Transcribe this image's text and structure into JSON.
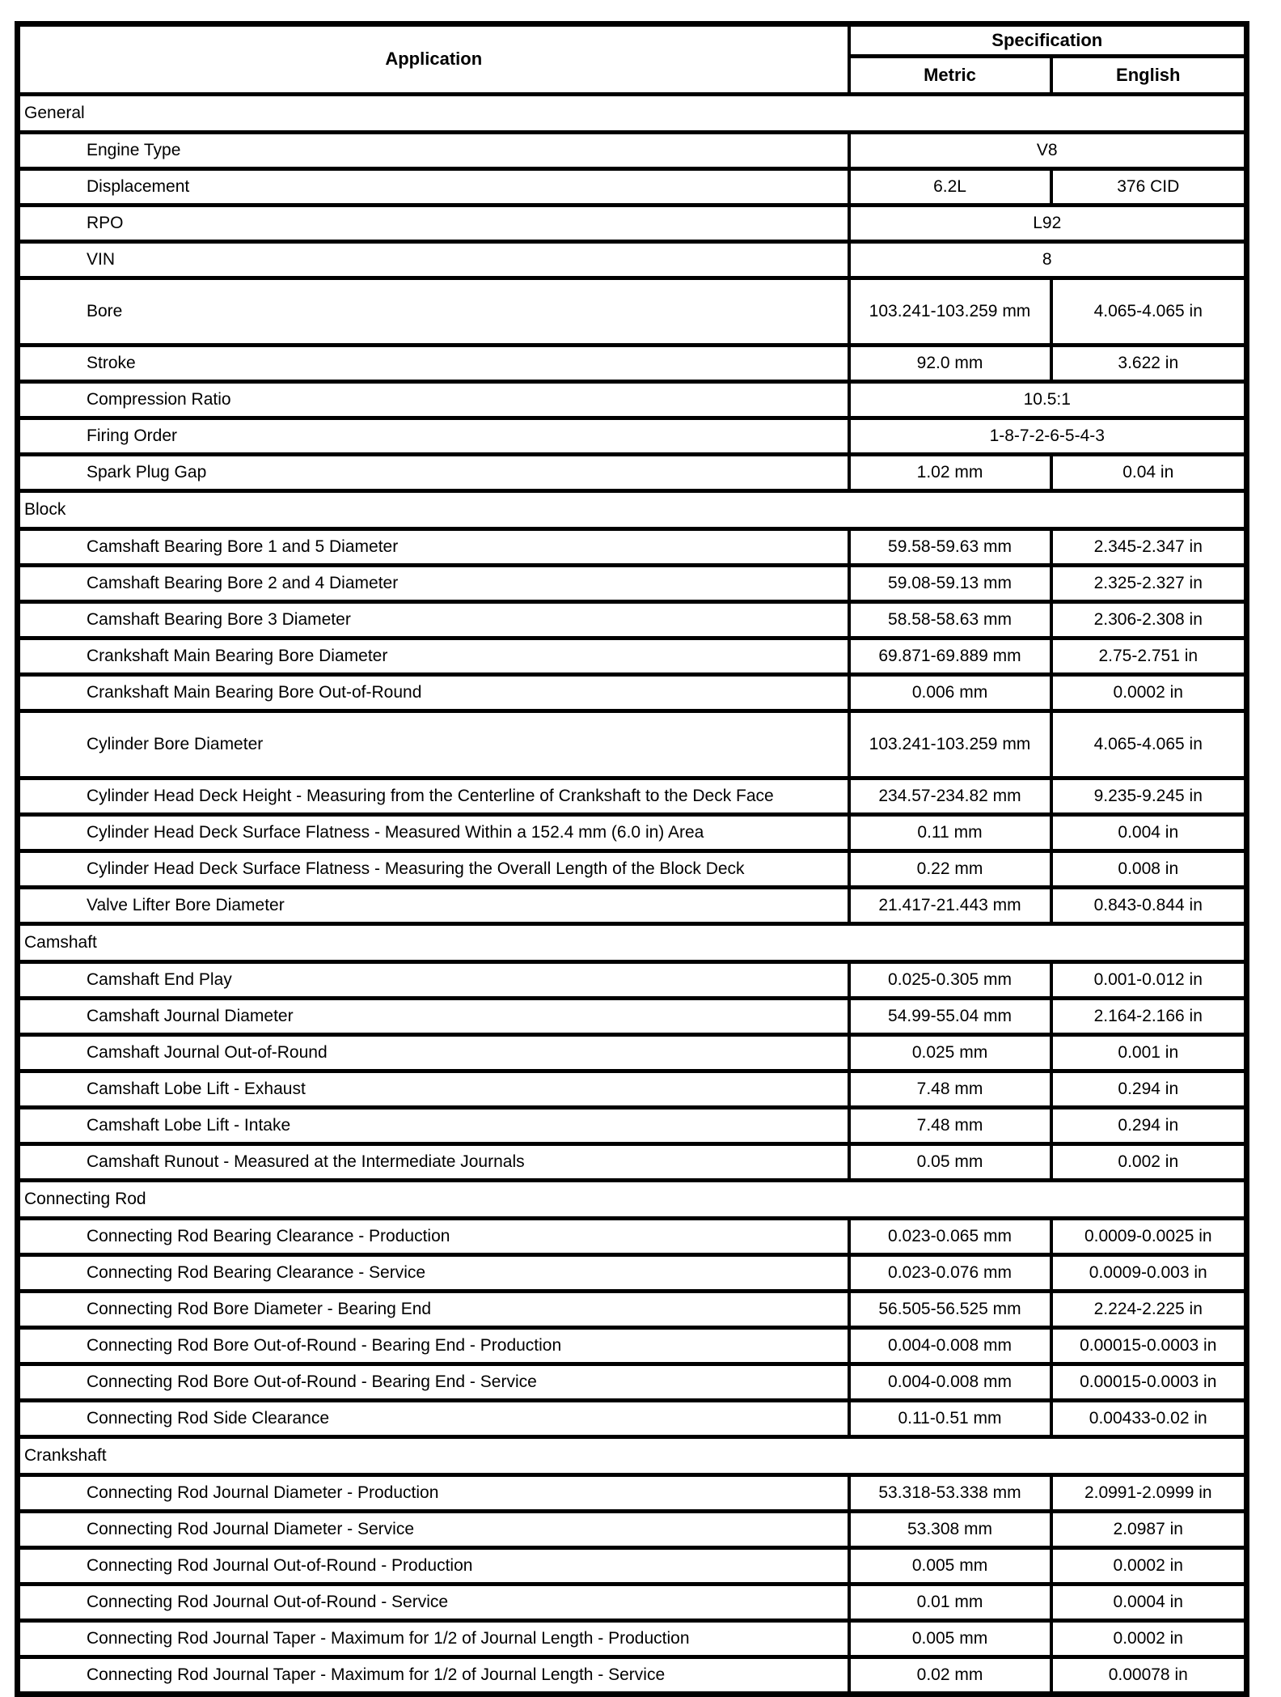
{
  "header": {
    "application": "Application",
    "specification": "Specification",
    "metric": "Metric",
    "english": "English"
  },
  "colors": {
    "border": "#000000",
    "background": "#ffffff",
    "text": "#000000"
  },
  "sections": [
    {
      "title": "General",
      "rows": [
        {
          "application": "Engine Type",
          "value": "V8"
        },
        {
          "application": "Displacement",
          "metric": "6.2L",
          "english": "376 CID"
        },
        {
          "application": "RPO",
          "value": "L92"
        },
        {
          "application": "VIN",
          "value": "8"
        },
        {
          "application": "Bore",
          "metric": "103.241-103.259 mm",
          "english": "4.065-4.065 in"
        },
        {
          "application": "Stroke",
          "metric": "92.0 mm",
          "english": "3.622 in"
        },
        {
          "application": "Compression Ratio",
          "value": "10.5:1"
        },
        {
          "application": "Firing Order",
          "value": "1-8-7-2-6-5-4-3"
        },
        {
          "application": "Spark Plug Gap",
          "metric": "1.02 mm",
          "english": "0.04 in"
        }
      ]
    },
    {
      "title": "Block",
      "rows": [
        {
          "application": "Camshaft Bearing Bore 1 and 5 Diameter",
          "metric": "59.58-59.63 mm",
          "english": "2.345-2.347 in"
        },
        {
          "application": "Camshaft Bearing Bore 2 and 4 Diameter",
          "metric": "59.08-59.13 mm",
          "english": "2.325-2.327 in"
        },
        {
          "application": "Camshaft Bearing Bore 3 Diameter",
          "metric": "58.58-58.63 mm",
          "english": "2.306-2.308 in"
        },
        {
          "application": "Crankshaft Main Bearing Bore Diameter",
          "metric": "69.871-69.889 mm",
          "english": "2.75-2.751 in"
        },
        {
          "application": "Crankshaft Main Bearing Bore Out-of-Round",
          "metric": "0.006 mm",
          "english": "0.0002 in"
        },
        {
          "application": "Cylinder Bore Diameter",
          "metric": "103.241-103.259 mm",
          "english": "4.065-4.065 in"
        },
        {
          "application": "Cylinder Head Deck Height - Measuring from the Centerline of Crankshaft to the Deck Face",
          "metric": "234.57-234.82 mm",
          "english": "9.235-9.245 in"
        },
        {
          "application": "Cylinder Head Deck Surface Flatness - Measured Within a 152.4 mm (6.0 in) Area",
          "metric": "0.11 mm",
          "english": "0.004 in"
        },
        {
          "application": "Cylinder Head Deck Surface Flatness - Measuring the Overall Length of the Block Deck",
          "metric": "0.22 mm",
          "english": "0.008 in"
        },
        {
          "application": "Valve Lifter Bore Diameter",
          "metric": "21.417-21.443 mm",
          "english": "0.843-0.844 in"
        }
      ]
    },
    {
      "title": "Camshaft",
      "rows": [
        {
          "application": "Camshaft End Play",
          "metric": "0.025-0.305 mm",
          "english": "0.001-0.012 in"
        },
        {
          "application": "Camshaft Journal Diameter",
          "metric": "54.99-55.04 mm",
          "english": "2.164-2.166 in"
        },
        {
          "application": "Camshaft Journal Out-of-Round",
          "metric": "0.025 mm",
          "english": "0.001 in"
        },
        {
          "application": "Camshaft Lobe Lift - Exhaust",
          "metric": "7.48 mm",
          "english": "0.294 in"
        },
        {
          "application": "Camshaft Lobe Lift - Intake",
          "metric": "7.48 mm",
          "english": "0.294 in"
        },
        {
          "application": "Camshaft Runout - Measured at the Intermediate Journals",
          "metric": "0.05 mm",
          "english": "0.002 in"
        }
      ]
    },
    {
      "title": "Connecting Rod",
      "rows": [
        {
          "application": "Connecting Rod Bearing Clearance - Production",
          "metric": "0.023-0.065 mm",
          "english": "0.0009-0.0025 in"
        },
        {
          "application": "Connecting Rod Bearing Clearance - Service",
          "metric": "0.023-0.076 mm",
          "english": "0.0009-0.003 in"
        },
        {
          "application": "Connecting Rod Bore Diameter - Bearing End",
          "metric": "56.505-56.525 mm",
          "english": "2.224-2.225 in"
        },
        {
          "application": "Connecting Rod Bore Out-of-Round - Bearing End - Production",
          "metric": "0.004-0.008 mm",
          "english": "0.00015-0.0003 in"
        },
        {
          "application": "Connecting Rod Bore Out-of-Round - Bearing End - Service",
          "metric": "0.004-0.008 mm",
          "english": "0.00015-0.0003 in"
        },
        {
          "application": "Connecting Rod Side Clearance",
          "metric": "0.11-0.51 mm",
          "english": "0.00433-0.02 in"
        }
      ]
    },
    {
      "title": "Crankshaft",
      "rows": [
        {
          "application": "Connecting Rod Journal Diameter - Production",
          "metric": "53.318-53.338 mm",
          "english": "2.0991-2.0999 in"
        },
        {
          "application": "Connecting Rod Journal Diameter - Service",
          "metric": "53.308 mm",
          "english": "2.0987 in"
        },
        {
          "application": "Connecting Rod Journal Out-of-Round - Production",
          "metric": "0.005 mm",
          "english": "0.0002 in"
        },
        {
          "application": "Connecting Rod Journal Out-of-Round - Service",
          "metric": "0.01 mm",
          "english": "0.0004 in"
        },
        {
          "application": "Connecting Rod Journal Taper - Maximum for 1/2 of Journal Length - Production",
          "metric": "0.005 mm",
          "english": "0.0002 in"
        },
        {
          "application": "Connecting Rod Journal Taper - Maximum for 1/2 of Journal Length - Service",
          "metric": "0.02 mm",
          "english": "0.00078 in"
        }
      ]
    }
  ]
}
